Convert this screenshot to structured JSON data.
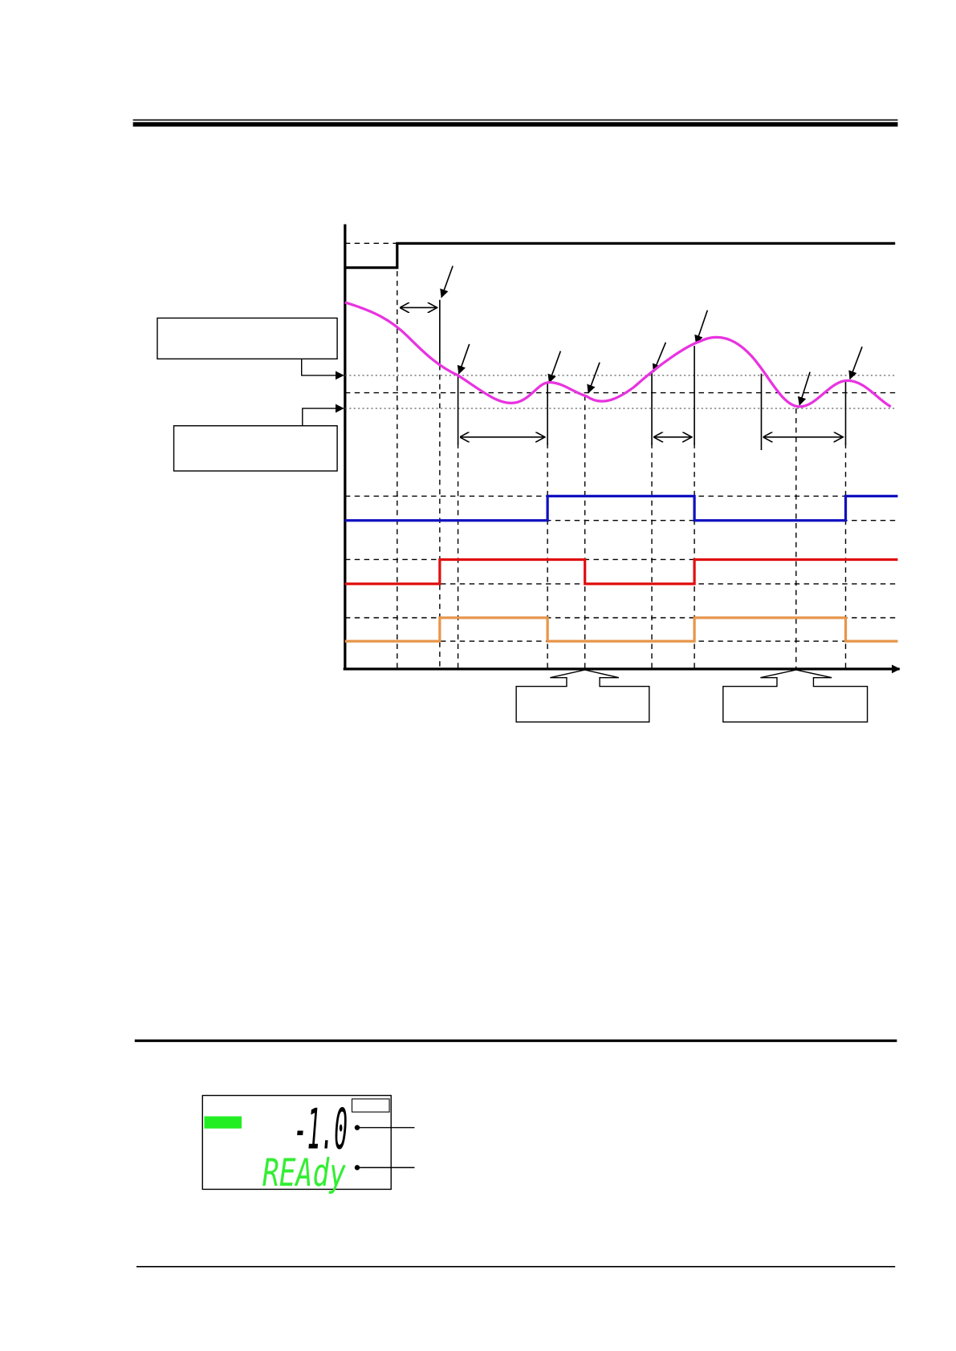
{
  "lcd": {
    "value": "-1.0",
    "status": "REAdy"
  }
}
